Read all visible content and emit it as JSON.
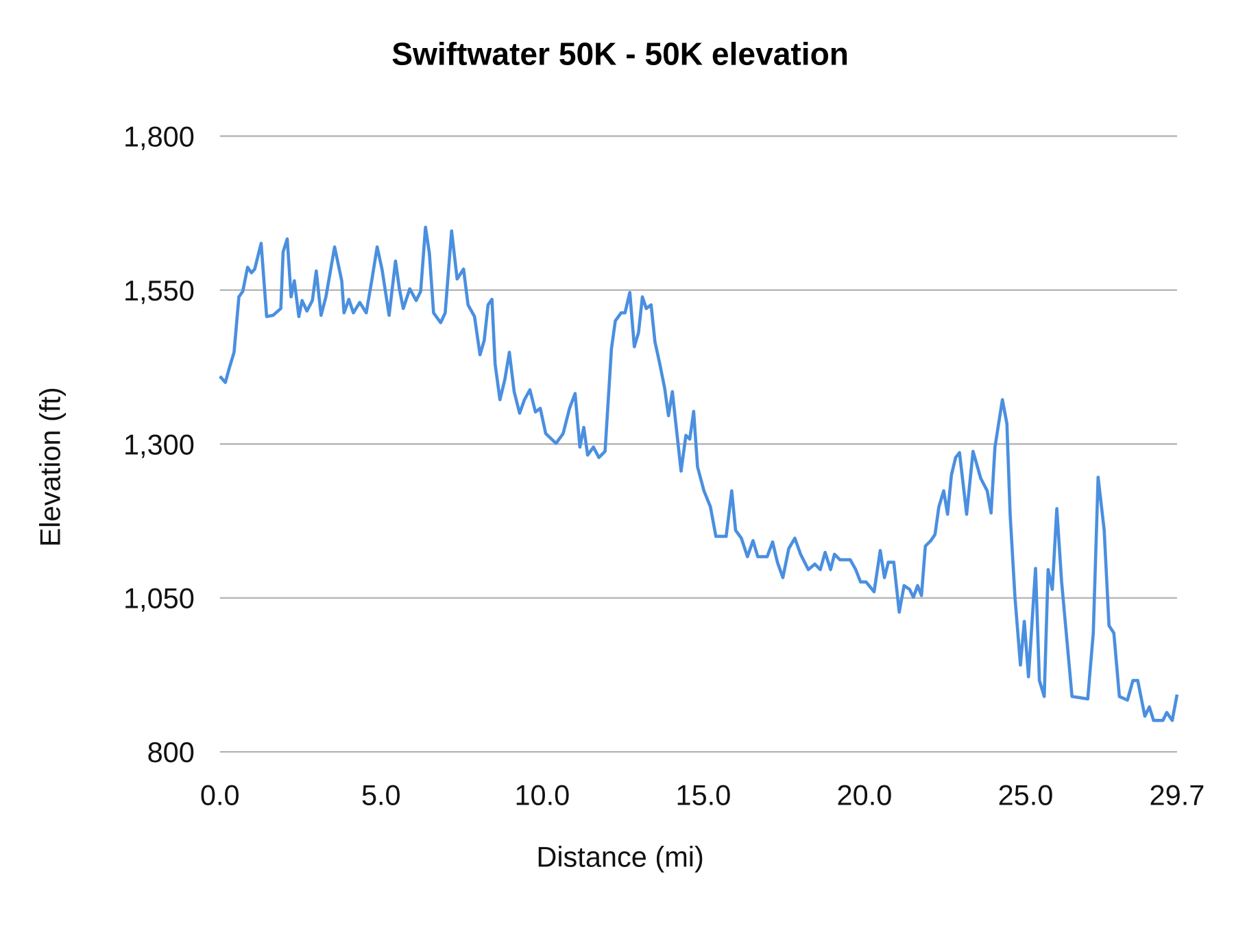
{
  "chart_data": {
    "type": "line",
    "title": "Swiftwater 50K - 50K elevation",
    "xlabel": "Distance (mi)",
    "ylabel": "Elevation (ft)",
    "xlim": [
      0,
      29.7
    ],
    "ylim": [
      800,
      1800
    ],
    "x_ticks": [
      "0.0",
      "5.0",
      "10.0",
      "15.0",
      "20.0",
      "25.0",
      "29.7"
    ],
    "x_tick_values": [
      0,
      5,
      10,
      15,
      20,
      25,
      29.7
    ],
    "y_ticks": [
      "800",
      "1,050",
      "1,300",
      "1,550",
      "1,800"
    ],
    "y_tick_values": [
      800,
      1050,
      1300,
      1550,
      1800
    ],
    "grid": "horizontal",
    "legend": "none",
    "line_color": "#4a8fe0",
    "series": [
      {
        "x": [
          0.0,
          0.17,
          0.29,
          0.44,
          0.59,
          0.71,
          0.86,
          0.98,
          1.08,
          1.28,
          1.45,
          1.65,
          1.89,
          1.96,
          2.09,
          2.21,
          2.31,
          2.45,
          2.55,
          2.7,
          2.87,
          2.99,
          3.14,
          3.29,
          3.56,
          3.78,
          3.85,
          4.0,
          4.14,
          4.34,
          4.54,
          4.71,
          4.88,
          5.03,
          5.25,
          5.45,
          5.57,
          5.69,
          5.89,
          6.09,
          6.23,
          6.38,
          6.5,
          6.63,
          6.85,
          6.99,
          7.19,
          7.36,
          7.56,
          7.7,
          7.9,
          8.07,
          8.2,
          8.32,
          8.44,
          8.54,
          8.69,
          8.84,
          8.98,
          9.13,
          9.3,
          9.45,
          9.62,
          9.79,
          9.94,
          10.11,
          10.43,
          10.65,
          10.85,
          11.02,
          11.17,
          11.29,
          11.41,
          11.59,
          11.76,
          11.95,
          12.15,
          12.27,
          12.45,
          12.57,
          12.72,
          12.86,
          12.99,
          13.11,
          13.23,
          13.38,
          13.5,
          13.65,
          13.8,
          13.92,
          14.04,
          14.16,
          14.31,
          14.46,
          14.58,
          14.7,
          14.82,
          15.02,
          15.22,
          15.39,
          15.71,
          15.88,
          16.0,
          16.18,
          16.37,
          16.54,
          16.69,
          16.98,
          17.15,
          17.3,
          17.47,
          17.65,
          17.84,
          18.02,
          18.26,
          18.46,
          18.63,
          18.78,
          18.95,
          19.07,
          19.24,
          19.56,
          19.73,
          19.88,
          20.05,
          20.3,
          20.49,
          20.62,
          20.74,
          20.91,
          21.08,
          21.23,
          21.4,
          21.52,
          21.65,
          21.77,
          21.89,
          22.06,
          22.19,
          22.31,
          22.46,
          22.58,
          22.7,
          22.83,
          22.95,
          23.17,
          23.37,
          23.61,
          23.81,
          23.93,
          24.05,
          24.28,
          24.42,
          24.52,
          24.67,
          24.84,
          24.96,
          25.09,
          25.31,
          25.43,
          25.58,
          25.7,
          25.83,
          25.97,
          26.12,
          26.44,
          26.93,
          27.1,
          27.25,
          27.44,
          27.59,
          27.74,
          27.91,
          28.16,
          28.33,
          28.48,
          28.7,
          28.84,
          28.97,
          29.26,
          29.38,
          29.55,
          29.7
        ],
        "y": [
          1410,
          1400,
          1423,
          1449,
          1539,
          1548,
          1587,
          1578,
          1584,
          1626,
          1507,
          1509,
          1520,
          1612,
          1633,
          1539,
          1565,
          1507,
          1533,
          1516,
          1533,
          1581,
          1509,
          1539,
          1620,
          1565,
          1513,
          1535,
          1513,
          1530,
          1513,
          1565,
          1620,
          1584,
          1509,
          1597,
          1552,
          1520,
          1552,
          1533,
          1548,
          1652,
          1610,
          1513,
          1497,
          1513,
          1646,
          1568,
          1584,
          1526,
          1507,
          1445,
          1468,
          1526,
          1535,
          1430,
          1372,
          1404,
          1449,
          1385,
          1350,
          1372,
          1388,
          1352,
          1358,
          1317,
          1301,
          1317,
          1358,
          1382,
          1295,
          1327,
          1282,
          1295,
          1278,
          1288,
          1455,
          1500,
          1513,
          1513,
          1546,
          1458,
          1481,
          1539,
          1520,
          1526,
          1466,
          1430,
          1391,
          1346,
          1385,
          1327,
          1256,
          1314,
          1308,
          1353,
          1263,
          1224,
          1198,
          1150,
          1150,
          1224,
          1160,
          1147,
          1117,
          1143,
          1117,
          1117,
          1141,
          1108,
          1083,
          1130,
          1147,
          1121,
          1096,
          1105,
          1096,
          1124,
          1096,
          1121,
          1112,
          1112,
          1096,
          1076,
          1076,
          1060,
          1127,
          1083,
          1108,
          1108,
          1027,
          1070,
          1064,
          1051,
          1070,
          1054,
          1134,
          1143,
          1153,
          1198,
          1224,
          1186,
          1250,
          1278,
          1286,
          1186,
          1288,
          1244,
          1224,
          1188,
          1295,
          1372,
          1333,
          1186,
          1051,
          941,
          1012,
          922,
          1098,
          916,
          890,
          1096,
          1064,
          1195,
          1076,
          890,
          886,
          993,
          1246,
          1160,
          1005,
          993,
          890,
          884,
          916,
          916,
          858,
          873,
          851,
          851,
          864,
          851,
          893
        ]
      }
    ]
  }
}
